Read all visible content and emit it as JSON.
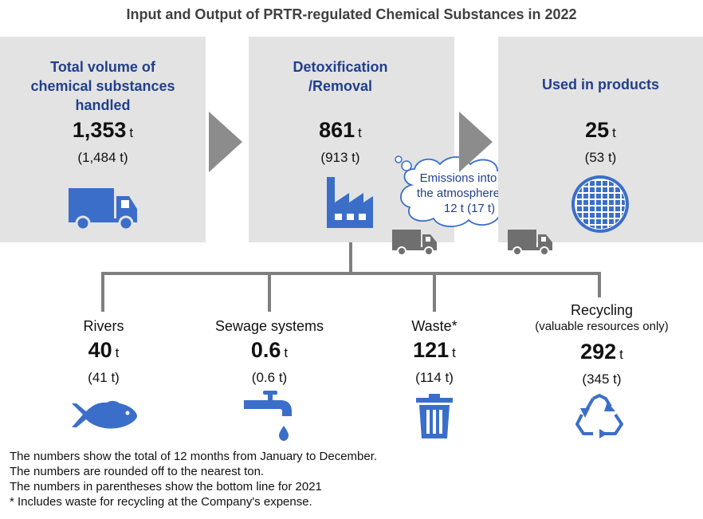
{
  "title": "Input and Output of PRTR-regulated Chemical Substances in 2022",
  "boxes": [
    {
      "heading": [
        "Total volume of",
        "chemical substances",
        "handled"
      ],
      "value": "1,353",
      "unit": "t",
      "previous": "(1,484 t)",
      "icon": "truck-icon"
    },
    {
      "heading": [
        "Detoxification",
        "/Removal"
      ],
      "value": "861",
      "unit": "t",
      "previous": "(913 t)",
      "icon": "factory-icon"
    },
    {
      "heading": [
        "Used in products"
      ],
      "value": "25",
      "unit": "t",
      "previous": "(53 t)",
      "icon": "wafer-icon"
    }
  ],
  "emissions": {
    "line1": "Emissions into",
    "line2": "the atmosphere",
    "line3": "12 t (17 t)"
  },
  "outputs": [
    {
      "label": "Rivers",
      "sublabel": "",
      "value": "40",
      "unit": "t",
      "previous": "(41 t)",
      "icon": "fish-icon"
    },
    {
      "label": "Sewage systems",
      "sublabel": "",
      "value": "0.6",
      "unit": "t",
      "previous": "(0.6 t)",
      "icon": "faucet-icon"
    },
    {
      "label": "Waste*",
      "sublabel": "",
      "value": "121",
      "unit": "t",
      "previous": "(114 t)",
      "icon": "trash-can-icon"
    },
    {
      "label": "Recycling",
      "sublabel": "(valuable resources only)",
      "value": "292",
      "unit": "t",
      "previous": "(345 t)",
      "icon": "recycle-icon"
    }
  ],
  "notes": [
    "The numbers show the total of 12 months from January to December.",
    "The numbers are rounded off to the nearest ton.",
    "The numbers in parentheses show the bottom line for 2021",
    "* Includes waste for recycling at the Company's expense."
  ],
  "colors": {
    "accent_blue": "#3b6ec9",
    "heading_blue": "#213f8c",
    "box_gray": "#e3e3e3",
    "arrow_gray": "#8c8c8c",
    "line_gray": "#7f7f7f",
    "truck_gray": "#6f6f6f"
  }
}
